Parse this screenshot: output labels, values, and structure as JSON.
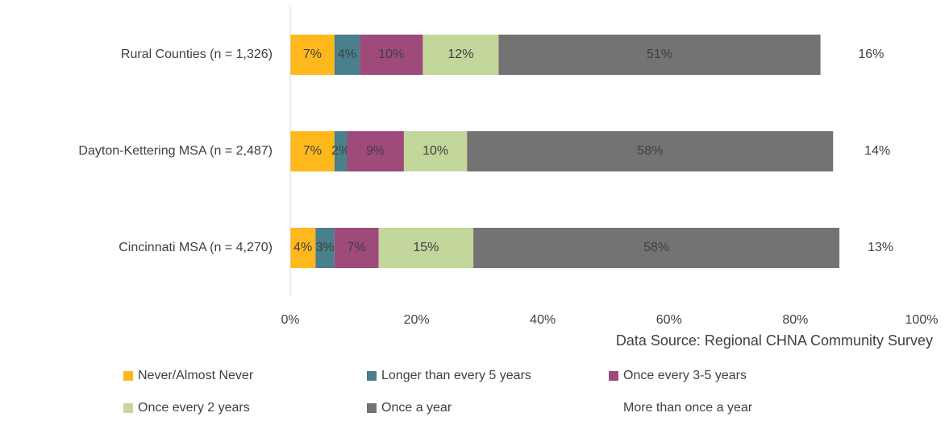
{
  "chart_data": {
    "type": "stacked_barh",
    "categories": [
      "Rural Counties (n = 1,326)",
      "Dayton-Kettering MSA (n = 2,487)",
      "Cincinnati MSA (n = 4,270)"
    ],
    "series": [
      {
        "name": "Never/Almost Never",
        "color": "#FFB81C",
        "values": [
          7,
          7,
          4
        ],
        "value_labels": [
          "7%",
          "7%",
          "4%"
        ]
      },
      {
        "name": "Longer than every 5 years",
        "color": "#4A7F8C",
        "values": [
          4,
          2,
          3
        ],
        "value_labels": [
          "4%",
          "2%",
          "3%"
        ]
      },
      {
        "name": "Once every 3-5 years",
        "color": "#9E4A7A",
        "values": [
          10,
          9,
          7
        ],
        "value_labels": [
          "10%",
          "9%",
          "7%"
        ]
      },
      {
        "name": "Once every 2 years",
        "color": "#C3D69B",
        "values": [
          12,
          10,
          15
        ],
        "value_labels": [
          "12%",
          "10%",
          "15%"
        ]
      },
      {
        "name": "Once a year",
        "color": "#737373",
        "values": [
          51,
          58,
          58
        ],
        "value_labels": [
          "51%",
          "58%",
          "58%"
        ]
      },
      {
        "name": "More than once a year",
        "color": "#FFFFFF",
        "values": [
          16,
          14,
          13
        ],
        "value_labels": [
          "16%",
          "14%",
          "13%"
        ]
      }
    ],
    "xlim": [
      0,
      100
    ],
    "xticks": [
      {
        "value": 0,
        "label": "0%"
      },
      {
        "value": 20,
        "label": "20%"
      },
      {
        "value": 40,
        "label": "40%"
      },
      {
        "value": 60,
        "label": "60%"
      },
      {
        "value": 80,
        "label": "80%"
      },
      {
        "value": 100,
        "label": "100%"
      }
    ],
    "annotation": "Data Source: Regional CHNA Community Survey",
    "legend": "bottom"
  }
}
